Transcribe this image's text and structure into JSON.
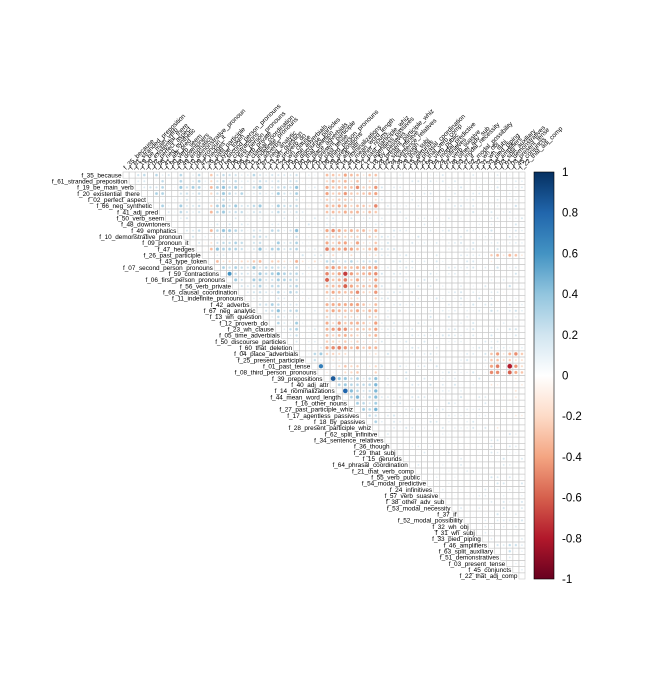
{
  "chart_data": {
    "type": "heatmap",
    "variant": "correlation matrix (upper triangle, circle markers sized and colored by correlation)",
    "variables": [
      "f_35_because",
      "f_61_stranded_preposition",
      "f_19_be_main_verb",
      "f_20_existential_there",
      "f_02_perfect_aspect",
      "f_66_neg_synthetic",
      "f_41_adj_pred",
      "f_50_verb_seem",
      "f_48_downtoners",
      "f_49_emphatics",
      "f_10_demonstrative_pronoun",
      "f_09_pronoun_it",
      "f_47_hedges",
      "f_26_past_participle",
      "f_43_type_token",
      "f_07_second_person_pronouns",
      "f_59_contractions",
      "f_06_first_person_pronouns",
      "f_56_verb_private",
      "f_65_clausal_coordination",
      "f_11_indefinite_pronouns",
      "f_42_adverbs",
      "f_67_neg_analytic",
      "f_13_wh_question",
      "f_12_proverb_do",
      "f_23_wh_clause",
      "f_05_time_adverbials",
      "f_50_discourse_particles",
      "f_60_that_deletion",
      "f_04_place_adverbials",
      "f_25_present_participle",
      "f_01_past_tense",
      "f_08_third_person_pronouns",
      "f_39_prepositions",
      "f_40_adj_attr",
      "f_14_nominalizations",
      "f_44_mean_word_length",
      "f_16_other_nouns",
      "f_27_past_participle_whiz",
      "f_17_agentless_passives",
      "f_18_by_passives",
      "f_28_present_participle_whiz",
      "f_62_split_infinitve",
      "f_34_sentence_relatives",
      "f_36_though",
      "f_29_that_subj",
      "f_15_gerunds",
      "f_64_phrasal_coordination",
      "f_21_that_verb_comp",
      "f_55_verb_public",
      "f_54_modal_predictive",
      "f_24_infinitives",
      "f_57_verb_suasive",
      "f_38_other_adv_sub",
      "f_53_modal_necessity",
      "f_37_if",
      "f_52_modal_possibility",
      "f_32_wh_obj",
      "f_31_wh_subj",
      "f_33_pied_piping",
      "f_46_amplifiers",
      "f_63_split_auxiliary",
      "f_51_demonstratives",
      "f_03_present_tense",
      "f_45_conjuncts",
      "f_22_that_adj_comp"
    ],
    "colorbar": {
      "ticks": [
        "1",
        "0.8",
        "0.6",
        "0.4",
        "0.2",
        "0",
        "-0.2",
        "-0.4",
        "-0.6",
        "-0.8",
        "-1"
      ],
      "range": [
        -1,
        1
      ],
      "colors": [
        "#67001f",
        "#b2182b",
        "#d6604d",
        "#f4a582",
        "#fddbc7",
        "#ffffff",
        "#d1e5f0",
        "#92c5de",
        "#4393c3",
        "#2166ac",
        "#053061"
      ]
    },
    "title": "",
    "grid": true,
    "diagonal": "empty",
    "legend_position": "right",
    "notable_correlations": [
      {
        "pair": [
          "f_39_prepositions",
          "f_40_adj_attr"
        ],
        "value": 0.85
      },
      {
        "pair": [
          "f_14_nominalizations",
          "f_44_mean_word_length"
        ],
        "value": 0.8
      },
      {
        "pair": [
          "f_59_contractions",
          "f_06_first_person_pronouns"
        ],
        "value": 0.6
      },
      {
        "pair": [
          "f_01_past_tense",
          "f_08_third_person_pronouns"
        ],
        "value": 0.7
      },
      {
        "pair": [
          "f_59_contractions",
          "f_44_mean_word_length"
        ],
        "value": -0.7
      },
      {
        "pair": [
          "f_06_first_person_pronouns",
          "f_39_prepositions"
        ],
        "value": -0.6
      },
      {
        "pair": [
          "f_56_verb_private",
          "f_44_mean_word_length"
        ],
        "value": -0.6
      },
      {
        "pair": [
          "f_01_past_tense",
          "f_03_present_tense"
        ],
        "value": -0.8
      },
      {
        "pair": [
          "f_08_third_person_pronouns",
          "f_03_present_tense"
        ],
        "value": -0.6
      }
    ]
  }
}
